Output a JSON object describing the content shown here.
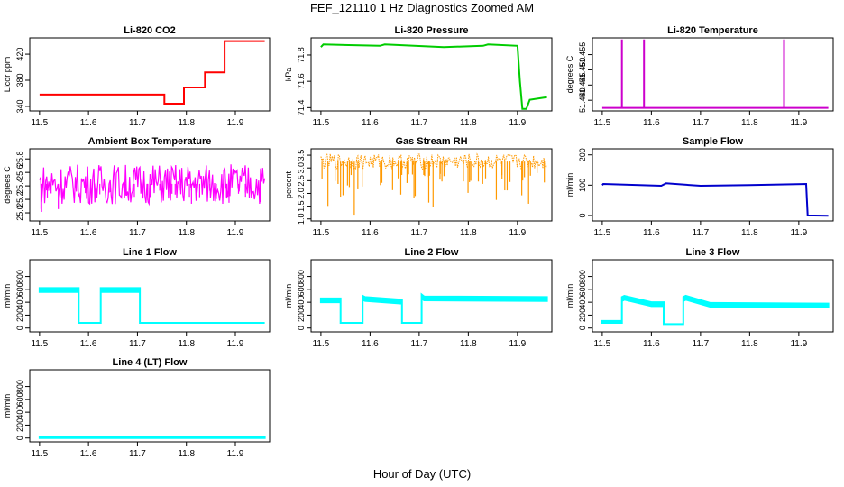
{
  "main_title": "FEF_121110  1 Hz Diagnostics Zoomed AM",
  "x_axis_title": "Hour of Day (UTC)",
  "chart_data": [
    {
      "type": "line",
      "title": "Li-820 CO2",
      "ylabel": "Licor ppm",
      "color": "#ff0000",
      "xlim": [
        11.48,
        11.97
      ],
      "ylim": [
        333,
        445
      ],
      "xticks": [
        "11.5",
        "11.6",
        "11.7",
        "11.8",
        "11.9"
      ],
      "yticks": [
        "340",
        "380",
        "420"
      ],
      "series": [
        {
          "name": "CO2",
          "style": "step",
          "x": [
            11.5,
            11.755,
            11.755,
            11.795,
            11.795,
            11.838,
            11.838,
            11.878,
            11.878,
            11.96
          ],
          "y": [
            358,
            358,
            344,
            344,
            369,
            369,
            392,
            392,
            440,
            440
          ]
        }
      ]
    },
    {
      "type": "line",
      "title": "Li-820 Pressure",
      "ylabel": "kPa",
      "color": "#00cc00",
      "xlim": [
        11.48,
        11.97
      ],
      "ylim": [
        71.375,
        71.93
      ],
      "xticks": [
        "11.5",
        "11.6",
        "11.7",
        "11.8",
        "11.9"
      ],
      "yticks": [
        "71.4",
        "71.6",
        "71.8"
      ],
      "series": [
        {
          "name": "Pressure",
          "style": "line",
          "x": [
            11.5,
            11.505,
            11.62,
            11.63,
            11.75,
            11.83,
            11.84,
            11.9,
            11.905,
            11.91,
            11.918,
            11.925,
            11.96
          ],
          "y": [
            71.86,
            71.88,
            71.87,
            71.88,
            71.86,
            71.87,
            71.88,
            71.87,
            71.6,
            71.39,
            71.39,
            71.46,
            71.48
          ]
        }
      ]
    },
    {
      "type": "line",
      "title": "Li-820 Temperature",
      "ylabel": "degrees C",
      "color": "#cc00cc",
      "xlim": [
        11.48,
        11.97
      ],
      "ylim": [
        51.4365,
        51.4605
      ],
      "xticks": [
        "11.5",
        "11.6",
        "11.7",
        "11.8",
        "11.9"
      ],
      "yticks": [
        "51.440",
        "51.445",
        "51.450",
        "51.455"
      ],
      "series": [
        {
          "name": "Temperature",
          "style": "line",
          "x": [
            11.5,
            11.54,
            11.54,
            11.54,
            11.585,
            11.585,
            11.585,
            11.87,
            11.87,
            11.87,
            11.96
          ],
          "y": [
            51.4375,
            51.4375,
            51.46,
            51.4375,
            51.4375,
            51.46,
            51.4375,
            51.4375,
            51.46,
            51.4375,
            51.4375
          ]
        }
      ]
    },
    {
      "type": "line",
      "title": "Ambient Box Temperature",
      "ylabel": "degrees C",
      "color": "#ff00ff",
      "xlim": [
        11.48,
        11.97
      ],
      "ylim": [
        24.88,
        25.95
      ],
      "xticks": [
        "11.5",
        "11.6",
        "11.7",
        "11.8",
        "11.9"
      ],
      "yticks": [
        "25.0",
        "25.2",
        "25.4",
        "25.6",
        "25.8"
      ],
      "series": [
        {
          "name": "Box Temperature",
          "style": "noise",
          "base": 25.43,
          "amp": 0.3,
          "spikes": 40,
          "spike_to": 24.95
        }
      ]
    },
    {
      "type": "scatter",
      "title": "Gas Stream RH",
      "ylabel": "percent",
      "color": "#ff9900",
      "xlim": [
        11.48,
        11.97
      ],
      "ylim": [
        0.92,
        3.75
      ],
      "xticks": [
        "11.5",
        "11.6",
        "11.7",
        "11.8",
        "11.9"
      ],
      "yticks": [
        "1.0",
        "1.5",
        "2.0",
        "2.5",
        "3.0",
        "3.5"
      ],
      "series": [
        {
          "name": "RH",
          "style": "noise",
          "base": 3.25,
          "amp": 0.3,
          "spikes": 55,
          "spike_to": 1.0
        }
      ]
    },
    {
      "type": "line",
      "title": "Sample Flow",
      "ylabel": "ml/min",
      "color": "#0000cc",
      "xlim": [
        11.48,
        11.97
      ],
      "ylim": [
        -18,
        220
      ],
      "xticks": [
        "11.5",
        "11.6",
        "11.7",
        "11.8",
        "11.9"
      ],
      "yticks": [
        "0",
        "100",
        "200"
      ],
      "series": [
        {
          "name": "Sample Flow",
          "style": "line",
          "x": [
            11.5,
            11.502,
            11.62,
            11.63,
            11.7,
            11.8,
            11.915,
            11.918,
            11.96
          ],
          "y": [
            100,
            104,
            98,
            106,
            98,
            100,
            104,
            0,
            -1
          ]
        }
      ]
    },
    {
      "type": "line",
      "title": "Line 1 Flow",
      "ylabel": "ml/min",
      "color": "#00ffff",
      "xlim": [
        11.48,
        11.97
      ],
      "ylim": [
        -60,
        1060
      ],
      "xticks": [
        "11.5",
        "11.6",
        "11.7",
        "11.8",
        "11.9"
      ],
      "yticks": [
        "0",
        "200",
        "400",
        "600",
        "800"
      ],
      "series": [
        {
          "name": "Line 1",
          "style": "band",
          "x": [
            11.5,
            11.58,
            11.58,
            11.625,
            11.625,
            11.705,
            11.705,
            11.96
          ],
          "y": [
            560,
            560,
            80,
            80,
            560,
            560,
            80,
            80
          ],
          "band": [
            60,
            60,
            0,
            0,
            60,
            60,
            0,
            0
          ]
        }
      ]
    },
    {
      "type": "line",
      "title": "Line 2 Flow",
      "ylabel": "ml/min",
      "color": "#00ffff",
      "xlim": [
        11.48,
        11.97
      ],
      "ylim": [
        -60,
        1060
      ],
      "xticks": [
        "11.5",
        "11.6",
        "11.7",
        "11.8",
        "11.9"
      ],
      "yticks": [
        "0",
        "200",
        "400",
        "600",
        "800"
      ],
      "series": [
        {
          "name": "Line 2",
          "style": "band",
          "x": [
            11.5,
            11.54,
            11.54,
            11.585,
            11.585,
            11.59,
            11.665,
            11.665,
            11.705,
            11.705,
            11.71,
            11.96
          ],
          "y": [
            400,
            400,
            80,
            80,
            440,
            420,
            380,
            80,
            80,
            460,
            430,
            420
          ],
          "band": [
            60,
            60,
            0,
            0,
            60,
            60,
            60,
            0,
            0,
            60,
            60,
            60
          ]
        }
      ]
    },
    {
      "type": "line",
      "title": "Line 3 Flow",
      "ylabel": "ml/min",
      "color": "#00ffff",
      "xlim": [
        11.48,
        11.97
      ],
      "ylim": [
        -60,
        1060
      ],
      "xticks": [
        "11.5",
        "11.6",
        "11.7",
        "11.8",
        "11.9"
      ],
      "yticks": [
        "0",
        "200",
        "400",
        "600",
        "800"
      ],
      "series": [
        {
          "name": "Line 3",
          "style": "band",
          "x": [
            11.5,
            11.54,
            11.54,
            11.545,
            11.6,
            11.625,
            11.625,
            11.665,
            11.665,
            11.67,
            11.72,
            11.96
          ],
          "y": [
            80,
            80,
            420,
            440,
            340,
            340,
            60,
            60,
            420,
            440,
            330,
            320
          ],
          "band": [
            30,
            30,
            60,
            60,
            60,
            60,
            0,
            0,
            60,
            60,
            60,
            60
          ]
        }
      ]
    },
    {
      "type": "line",
      "title": "Line 4 (LT) Flow",
      "ylabel": "ml/min",
      "color": "#00ffff",
      "xlim": [
        11.48,
        11.97
      ],
      "ylim": [
        -60,
        1060
      ],
      "xticks": [
        "11.5",
        "11.6",
        "11.7",
        "11.8",
        "11.9"
      ],
      "yticks": [
        "0",
        "200",
        "400",
        "600",
        "800"
      ],
      "series": [
        {
          "name": "Line 4",
          "style": "band",
          "x": [
            11.5,
            11.96
          ],
          "y": [
            0,
            0
          ],
          "band": [
            10,
            10
          ]
        }
      ]
    }
  ]
}
